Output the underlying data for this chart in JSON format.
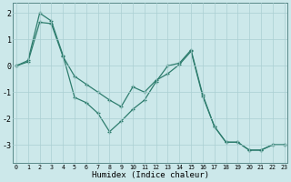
{
  "series1_x": [
    0,
    1,
    2,
    3,
    4,
    5,
    6,
    7,
    8,
    9,
    10,
    11,
    12,
    13,
    14,
    15,
    16,
    17,
    18,
    19,
    20,
    21,
    22,
    23
  ],
  "series1_y": [
    0.0,
    0.2,
    2.0,
    1.7,
    0.4,
    -1.2,
    -1.4,
    -1.8,
    -2.5,
    -2.1,
    -1.65,
    -1.3,
    -0.6,
    0.0,
    0.1,
    0.6,
    -1.1,
    -2.3,
    -2.9,
    -2.9,
    -3.2,
    -3.2,
    -3.0,
    -3.0
  ],
  "series2_x": [
    0,
    1,
    2,
    3,
    4,
    5,
    6,
    7,
    8,
    9,
    10,
    11,
    12,
    13,
    14,
    15,
    16,
    17,
    18,
    19,
    20,
    21,
    22,
    23
  ],
  "series2_y": [
    0.0,
    0.15,
    1.65,
    1.6,
    0.35,
    -0.4,
    -0.7,
    -1.0,
    -1.3,
    -1.55,
    -0.8,
    -1.0,
    -0.55,
    -0.3,
    0.05,
    0.55,
    -1.15,
    -2.3,
    -2.9,
    -2.9,
    -3.2,
    -3.2,
    -3.0,
    -3.0
  ],
  "line_color": "#2e7d6e",
  "bg_color": "#cce8ea",
  "grid_color": "#aacfd2",
  "xlabel": "Humidex (Indice chaleur)",
  "ylim": [
    -3.7,
    2.4
  ],
  "xlim": [
    -0.3,
    23.3
  ],
  "yticks": [
    -3,
    -2,
    -1,
    0,
    1,
    2
  ],
  "xticks": [
    0,
    1,
    2,
    3,
    4,
    5,
    6,
    7,
    8,
    9,
    10,
    11,
    12,
    13,
    14,
    15,
    16,
    17,
    18,
    19,
    20,
    21,
    22,
    23
  ]
}
